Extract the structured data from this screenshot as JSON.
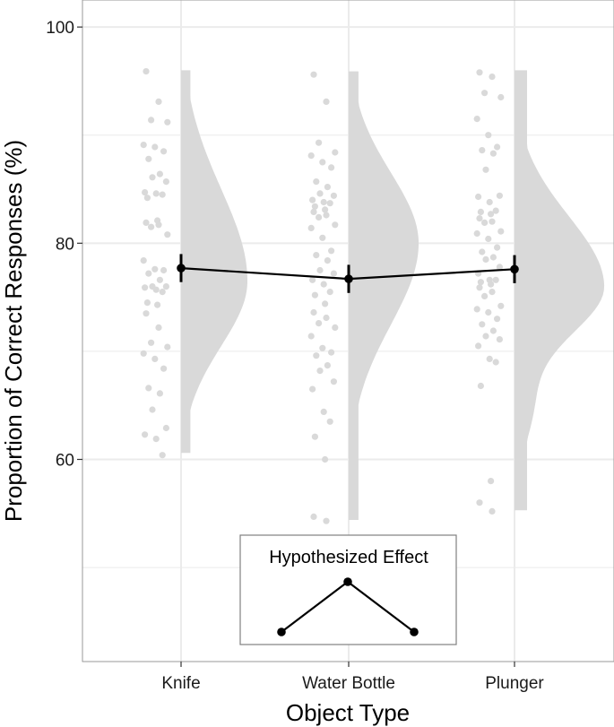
{
  "chart_data": {
    "type": "raincloud",
    "xlabel": "Object Type",
    "ylabel": "Proportion of Correct Responses (%)",
    "categories": [
      "Knife",
      "Water Bottle",
      "Plunger"
    ],
    "y_ticks": [
      60,
      80,
      100
    ],
    "y_minor_ticks": [
      50,
      70,
      90
    ],
    "ylim": [
      41.3,
      102.5
    ],
    "means": [
      77.7,
      76.7,
      77.6
    ],
    "error_half_widths": [
      1.3,
      1.3,
      1.3
    ],
    "points": [
      [
        95.9,
        93.1,
        91.4,
        91.2,
        89.1,
        88.9,
        88.5,
        87.8,
        86.4,
        86.1,
        85.7,
        84.7,
        84.6,
        84.5,
        84.2,
        82.1,
        81.9,
        81.7,
        81.5,
        80.8,
        78.4,
        77.6,
        77.5,
        77.2,
        76.6,
        76.0,
        76.0,
        75.9,
        75.7,
        75.5,
        74.5,
        74.3,
        73.5,
        72.2,
        70.8,
        70.4,
        69.8,
        69.3,
        68.4,
        66.6,
        66.1,
        64.6,
        62.9,
        62.3,
        61.9,
        60.4
      ],
      [
        95.6,
        93.1,
        89.3,
        88.4,
        88.1,
        87.5,
        87.0,
        85.7,
        85.2,
        84.6,
        84.4,
        84.0,
        83.8,
        83.7,
        83.4,
        83.1,
        82.9,
        82.6,
        82.4,
        81.7,
        81.4,
        80.5,
        79.3,
        78.9,
        78.4,
        77.5,
        77.2,
        76.6,
        76.2,
        75.5,
        75.2,
        74.4,
        73.6,
        73.1,
        72.6,
        72.2,
        71.4,
        70.3,
        69.9,
        69.6,
        68.7,
        68.2,
        67.2,
        66.5,
        64.4,
        63.5,
        62.1,
        60.0,
        54.7,
        54.3
      ],
      [
        95.8,
        95.4,
        93.9,
        93.5,
        91.5,
        90.0,
        88.9,
        88.6,
        88.3,
        86.8,
        84.4,
        84.3,
        83.8,
        83.0,
        82.9,
        82.7,
        82.3,
        82.0,
        81.9,
        81.1,
        80.9,
        80.4,
        79.6,
        79.2,
        78.7,
        78.5,
        77.8,
        77.2,
        76.6,
        76.6,
        76.4,
        76.2,
        75.9,
        75.5,
        75.1,
        74.2,
        73.9,
        73.6,
        73.0,
        72.5,
        71.9,
        71.4,
        71.1,
        70.5,
        69.3,
        69.0,
        66.8,
        58.0,
        56.0,
        55.2
      ]
    ],
    "density_ranges": [
      [
        60.6,
        96.0
      ],
      [
        54.4,
        95.9
      ],
      [
        55.3,
        96.0
      ]
    ],
    "density_peaks": [
      76.5,
      80.0,
      76.0
    ],
    "colors": {
      "points": "#d9d9d9",
      "density": "#d9d9d9",
      "mean_line": "#000000",
      "grid": "#ebebeb",
      "panel_border": "#999999"
    },
    "legend": {
      "title": "Hypothesized Effect",
      "pattern": [
        0,
        1,
        0
      ]
    }
  }
}
